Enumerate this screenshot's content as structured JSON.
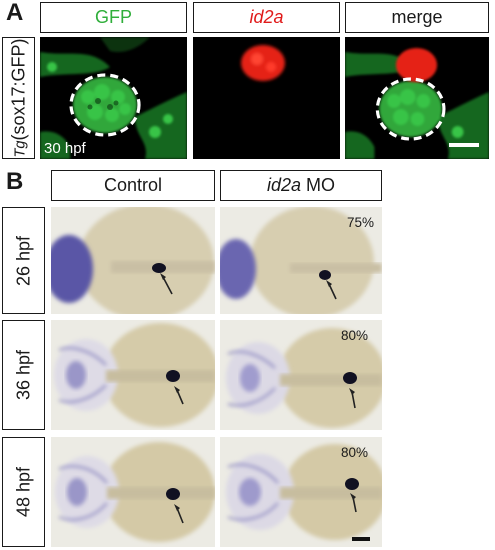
{
  "panel_a": {
    "letter": "A",
    "channels": [
      {
        "label": "GFP",
        "color": "#2fae3a"
      },
      {
        "label": "id2a",
        "color": "#e01b1b"
      },
      {
        "label": "merge",
        "color": "#1a1a1a"
      }
    ],
    "row_label_gene": "Tg",
    "row_label_construct": "(sox17:GFP)",
    "time_label": "30 hpf"
  },
  "panel_b": {
    "letter": "B",
    "columns": [
      {
        "label": "Control"
      },
      {
        "label_gene": "id2a",
        "label_suffix": " MO"
      }
    ],
    "rows": [
      {
        "label": "26 hpf",
        "percent": "75%"
      },
      {
        "label": "36 hpf",
        "percent": "80%"
      },
      {
        "label": "48 hpf",
        "percent": "80%"
      }
    ]
  }
}
